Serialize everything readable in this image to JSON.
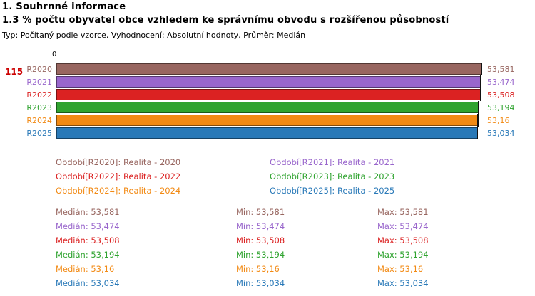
{
  "title": "1. Souhrnné informace",
  "subtitle": "1.3 % počtu obyvatel obce vzhledem ke správnímu obvodu s rozšířenou působností",
  "meta": "Typ: Počítaný podle vzorce, Vyhodnocení: Absolutní hodnoty, Průměr: Medián",
  "row_count": "115",
  "row_count_color": "#CC0000",
  "chart_data": {
    "type": "bar",
    "orientation": "horizontal",
    "title": "",
    "categories": [
      "R2020",
      "R2021",
      "R2022",
      "R2023",
      "R2024",
      "R2025"
    ],
    "values": [
      53.581,
      53.474,
      53.508,
      53.194,
      53.16,
      53.034
    ],
    "value_labels": [
      "53,581",
      "53,474",
      "53,508",
      "53,194",
      "53,16",
      "53,034"
    ],
    "series_colors": [
      "#986660",
      "#9966CC",
      "#DB2222",
      "#2FA32F",
      "#F28A14",
      "#2979B8"
    ],
    "xlim": [
      0,
      53.581
    ],
    "x_tick_labels": [
      "0"
    ],
    "grid": false,
    "legend_position": "below"
  },
  "legend": {
    "items": [
      {
        "label": "Období[R2020]: Realita - 2020"
      },
      {
        "label": "Období[R2021]: Realita - 2021"
      },
      {
        "label": "Období[R2022]: Realita - 2022"
      },
      {
        "label": "Období[R2023]: Realita - 2023"
      },
      {
        "label": "Období[R2024]: Realita - 2024"
      },
      {
        "label": "Období[R2025]: Realita - 2025"
      }
    ]
  },
  "stats": {
    "labels": {
      "median": "Medián",
      "min": "Min",
      "max": "Max"
    },
    "rows": [
      {
        "median": "53,581",
        "min": "53,581",
        "max": "53,581"
      },
      {
        "median": "53,474",
        "min": "53,474",
        "max": "53,474"
      },
      {
        "median": "53,508",
        "min": "53,508",
        "max": "53,508"
      },
      {
        "median": "53,194",
        "min": "53,194",
        "max": "53,194"
      },
      {
        "median": "53,16",
        "min": "53,16",
        "max": "53,16"
      },
      {
        "median": "53,034",
        "min": "53,034",
        "max": "53,034"
      }
    ]
  }
}
